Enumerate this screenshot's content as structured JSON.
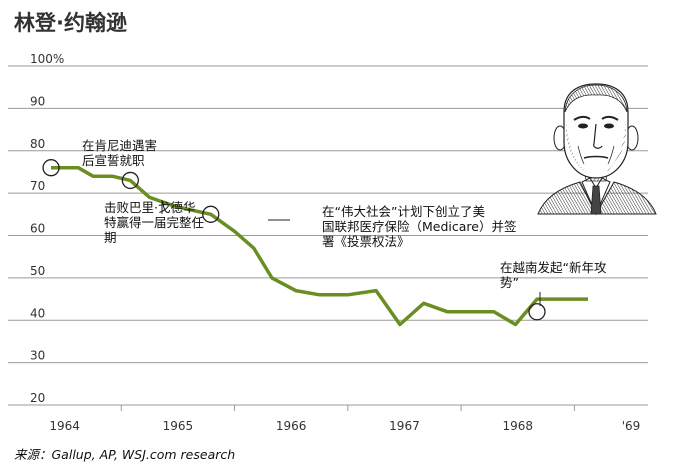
{
  "title": "林登·约翰逊",
  "source": "来源：Gallup, AP, WSJ.com research",
  "chart_data": {
    "type": "line",
    "title": "林登·约翰逊",
    "ylim": [
      20,
      100
    ],
    "yticks": [
      "100%",
      "90",
      "80",
      "70",
      "60",
      "50",
      "40",
      "30",
      "20"
    ],
    "xticks": [
      "1964",
      "1965",
      "1966",
      "1967",
      "1968",
      "'69"
    ],
    "grid": true,
    "line_color": "#6b8e23",
    "series": [
      {
        "x": [
          1963.88,
          1964.0,
          1964.12,
          1964.25,
          1964.42,
          1964.58,
          1964.75,
          1964.96,
          1965.12,
          1965.29,
          1965.5,
          1965.67,
          1965.83,
          1966.04,
          1966.25,
          1966.5,
          1966.75,
          1966.96,
          1967.17,
          1967.38,
          1967.58,
          1967.79,
          1967.98,
          1968.17,
          1968.4,
          1968.62
        ],
        "values": [
          76,
          76,
          76,
          74,
          74,
          73,
          69,
          67,
          66,
          65,
          61,
          57,
          50,
          47,
          46,
          46,
          47,
          39,
          44,
          42,
          42,
          42,
          39,
          45,
          45,
          45
        ]
      }
    ],
    "annotations": [
      {
        "lines": [
          "在肯尼迪遇害",
          "后宣誓就职"
        ],
        "x": 1963.88,
        "y": 76
      },
      {
        "lines": [
          "击败巴里·戈德华",
          "特赢得一届完整任",
          "期"
        ],
        "x": 1964.58,
        "y": 73
      },
      {
        "lines": [
          "在“伟大社会”计划下创立了美",
          "国联邦医疗保险（Medicare）并签",
          "署《投票权法》"
        ],
        "x": 1965.29,
        "y": 65
      },
      {
        "lines": [
          "在越南发起“新年攻",
          "势”"
        ],
        "x": 1968.17,
        "y": 42
      }
    ]
  }
}
